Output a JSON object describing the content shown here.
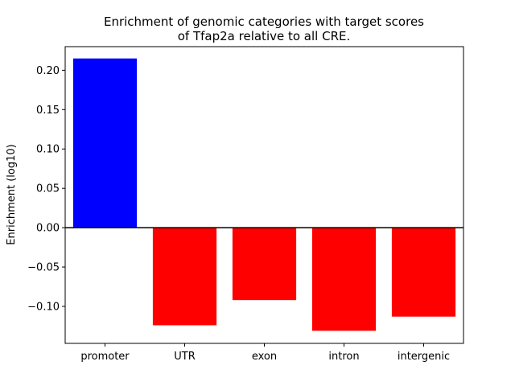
{
  "chart_data": {
    "type": "bar",
    "title_lines": [
      "Enrichment of genomic categories with target scores",
      "of Tfap2a relative to all CRE."
    ],
    "xlabel": "",
    "ylabel": "Enrichment (log10)",
    "categories": [
      "promoter",
      "UTR",
      "exon",
      "intron",
      "intergenic"
    ],
    "values": [
      0.215,
      -0.124,
      -0.092,
      -0.131,
      -0.113
    ],
    "ylim": [
      -0.147,
      0.23
    ],
    "yticks": [
      -0.1,
      -0.05,
      0.0,
      0.05,
      0.1,
      0.15,
      0.2
    ],
    "ytick_labels": [
      "−0.10",
      "−0.05",
      "0.00",
      "0.05",
      "0.10",
      "0.15",
      "0.20"
    ],
    "positive_color": "#0000ff",
    "negative_color": "#ff0000",
    "zero_line": true,
    "grid": false,
    "legend": "none"
  }
}
